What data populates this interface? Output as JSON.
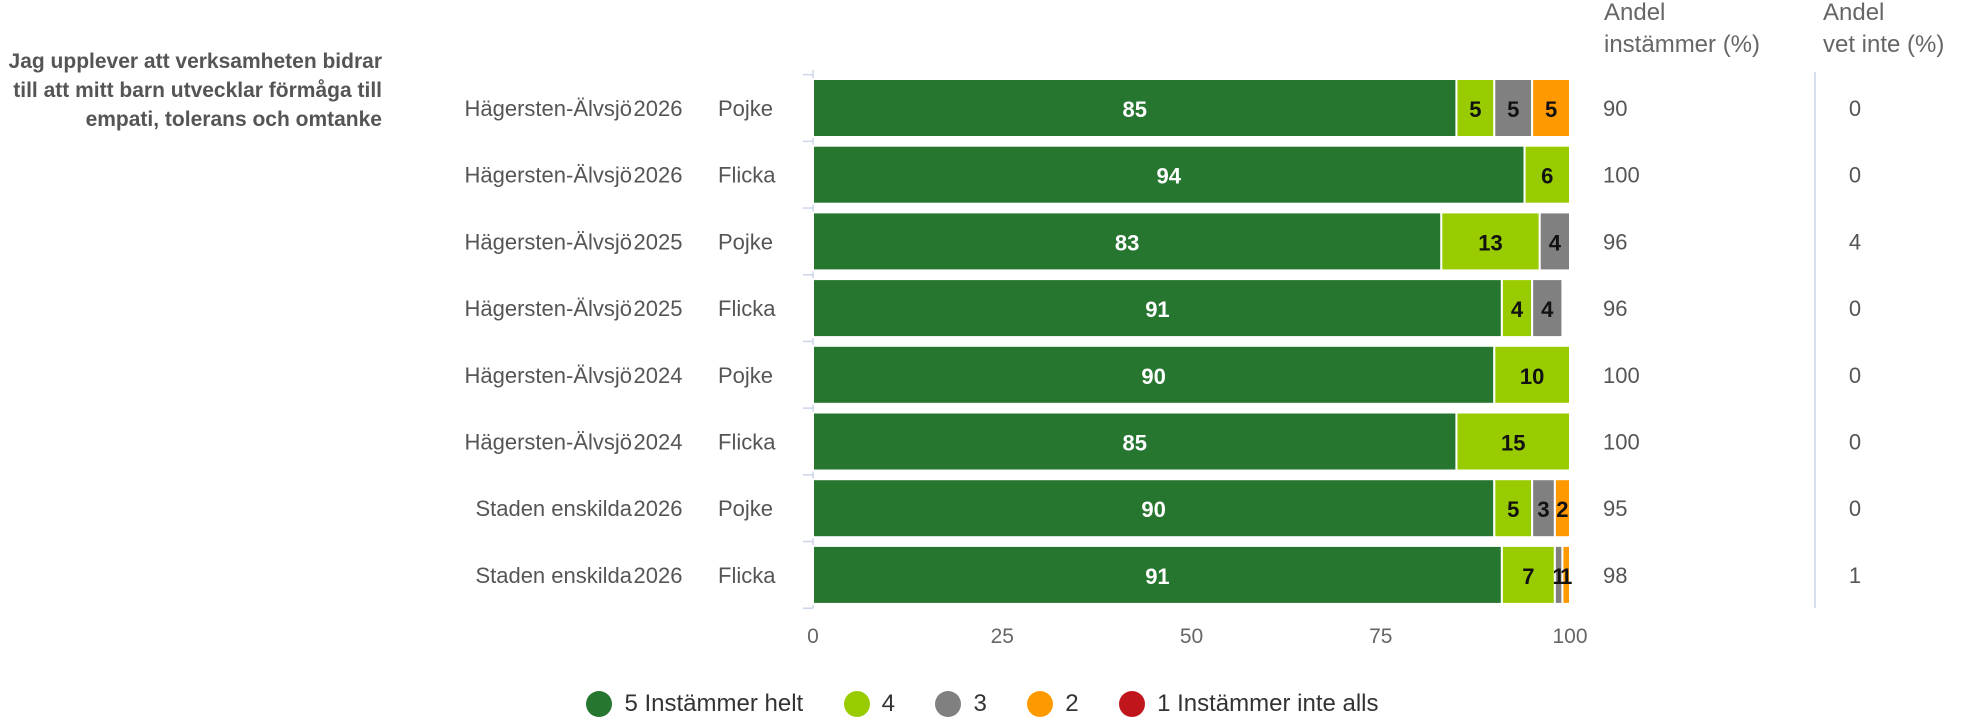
{
  "question": "Jag upplever att verksamheten bidrar till att mitt barn utvecklar förmåga till empati, tolerans och omtanke",
  "extra_headers": {
    "andel_instammer": [
      "Andel",
      "instämmer (%)"
    ],
    "andel_vet_inte": [
      "Andel",
      "vet inte (%)"
    ]
  },
  "legend": [
    {
      "label": "5 Instämmer helt",
      "color": "#267630"
    },
    {
      "label": "4",
      "color": "#99cc00"
    },
    {
      "label": "3",
      "color": "#808080"
    },
    {
      "label": "2",
      "color": "#ff9900"
    },
    {
      "label": "1 Instämmer inte alls",
      "color": "#c0151a"
    }
  ],
  "chart_data": {
    "type": "bar",
    "orientation": "horizontal",
    "stacked": true,
    "xlim": [
      0,
      100
    ],
    "xticks": [
      0,
      25,
      50,
      75,
      100
    ],
    "legend_position": "bottom",
    "rows": [
      {
        "area": "Hägersten-Älvsjö",
        "year": "2026",
        "gender": "Pojke",
        "andel_instammer": "90",
        "andel_vet_inte": "0"
      },
      {
        "area": "Hägersten-Älvsjö",
        "year": "2026",
        "gender": "Flicka",
        "andel_instammer": "100",
        "andel_vet_inte": "0"
      },
      {
        "area": "Hägersten-Älvsjö",
        "year": "2025",
        "gender": "Pojke",
        "andel_instammer": "96",
        "andel_vet_inte": "4"
      },
      {
        "area": "Hägersten-Älvsjö",
        "year": "2025",
        "gender": "Flicka",
        "andel_instammer": "96",
        "andel_vet_inte": "0"
      },
      {
        "area": "Hägersten-Älvsjö",
        "year": "2024",
        "gender": "Pojke",
        "andel_instammer": "100",
        "andel_vet_inte": "0"
      },
      {
        "area": "Hägersten-Älvsjö",
        "year": "2024",
        "gender": "Flicka",
        "andel_instammer": "100",
        "andel_vet_inte": "0"
      },
      {
        "area": "Staden enskilda",
        "year": "2026",
        "gender": "Pojke",
        "andel_instammer": "95",
        "andel_vet_inte": "0"
      },
      {
        "area": "Staden enskilda",
        "year": "2026",
        "gender": "Flicka",
        "andel_instammer": "98",
        "andel_vet_inte": "1"
      }
    ],
    "series": [
      {
        "name": "5 Instämmer helt",
        "color": "#267630",
        "label_color": "#ffffff",
        "values": [
          85,
          94,
          83,
          91,
          90,
          85,
          90,
          91
        ]
      },
      {
        "name": "4",
        "color": "#99cc00",
        "label_color": "#111111",
        "values": [
          5,
          6,
          13,
          4,
          10,
          15,
          5,
          7
        ]
      },
      {
        "name": "3",
        "color": "#808080",
        "label_color": "#111111",
        "values": [
          5,
          0,
          4,
          4,
          0,
          0,
          3,
          1
        ]
      },
      {
        "name": "2",
        "color": "#ff9900",
        "label_color": "#111111",
        "values": [
          5,
          0,
          0,
          0,
          0,
          0,
          2,
          1
        ]
      },
      {
        "name": "1 Instämmer inte alls",
        "color": "#c0151a",
        "label_color": "#ffffff",
        "values": [
          0,
          0,
          0,
          0,
          0,
          0,
          0,
          0
        ]
      }
    ]
  }
}
